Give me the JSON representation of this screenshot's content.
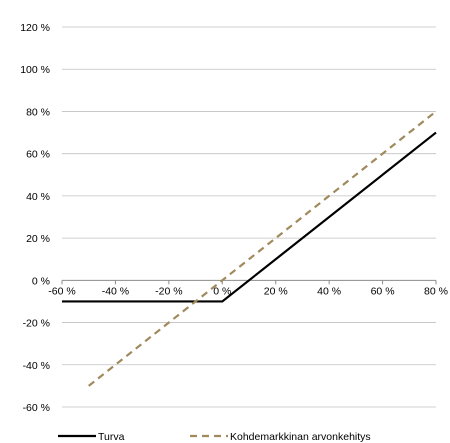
{
  "chart_data": {
    "type": "line",
    "title": "",
    "xlabel": "",
    "ylabel": "",
    "xlim": [
      -60,
      80
    ],
    "ylim": [
      -60,
      120
    ],
    "x_ticks": [
      {
        "value": -60,
        "label": "-60 %"
      },
      {
        "value": -40,
        "label": "-40 %"
      },
      {
        "value": -20,
        "label": "-20 %"
      },
      {
        "value": 0,
        "label": "0 %"
      },
      {
        "value": 20,
        "label": "20 %"
      },
      {
        "value": 40,
        "label": "40 %"
      },
      {
        "value": 60,
        "label": "60 %"
      },
      {
        "value": 80,
        "label": "80 %"
      }
    ],
    "y_ticks": [
      {
        "value": 120,
        "label": "120 %"
      },
      {
        "value": 100,
        "label": "100 %"
      },
      {
        "value": 80,
        "label": "80 %"
      },
      {
        "value": 60,
        "label": "60 %"
      },
      {
        "value": 40,
        "label": "40 %"
      },
      {
        "value": 20,
        "label": "20 %"
      },
      {
        "value": 0,
        "label": "0 %"
      },
      {
        "value": -20,
        "label": "-20 %"
      },
      {
        "value": -40,
        "label": "-40 %"
      },
      {
        "value": -60,
        "label": "-60 %"
      }
    ],
    "grid": true,
    "legend_position": "bottom-left",
    "series": [
      {
        "name": "Turva",
        "color": "#000000",
        "style": "solid",
        "points": [
          [
            -60,
            -10
          ],
          [
            0,
            -10
          ],
          [
            80,
            70
          ]
        ]
      },
      {
        "name": "Kohdemarkkinan arvonkehitys",
        "color": "#a08a5c",
        "style": "dashed",
        "points": [
          [
            -50,
            -50
          ],
          [
            80,
            80
          ]
        ]
      }
    ]
  }
}
